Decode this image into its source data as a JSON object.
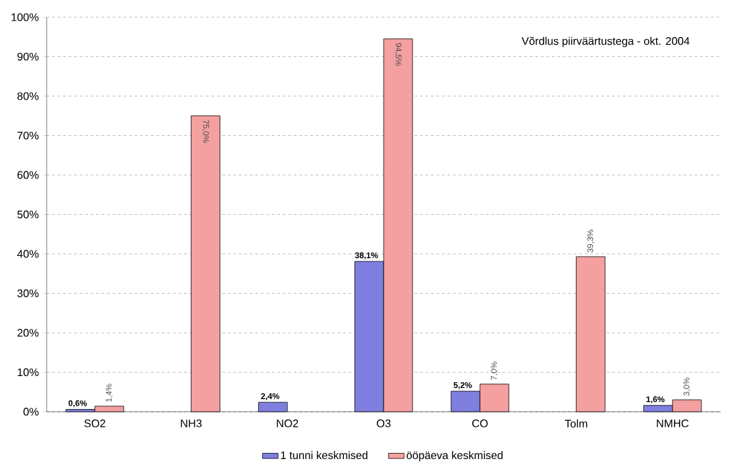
{
  "chart_data": {
    "type": "bar",
    "categories": [
      "SO2",
      "NH3",
      "NO2",
      "O3",
      "CO",
      "Tolm",
      "NMHC"
    ],
    "series": [
      {
        "name": "1 tunni keskmised",
        "color": "#7f7fe0",
        "values": [
          0.6,
          null,
          2.4,
          38.1,
          5.2,
          null,
          1.6
        ],
        "value_labels": [
          "0,6%",
          null,
          "2,4%",
          "38,1%",
          "5,2%",
          null,
          "1,6%"
        ]
      },
      {
        "name": "ööpäeva keskmised",
        "color": "#f4a0a0",
        "values": [
          1.4,
          75.0,
          null,
          94.5,
          7.0,
          39.3,
          3.0
        ],
        "value_labels": [
          "1,4%",
          "75,0%",
          null,
          "94,5%",
          "7,0%",
          "39,3%",
          "3,0%"
        ]
      }
    ],
    "ylim": [
      0,
      100
    ],
    "yticks": [
      {
        "value": 0,
        "label": "0%"
      },
      {
        "value": 10,
        "label": "10%"
      },
      {
        "value": 20,
        "label": "20%"
      },
      {
        "value": 30,
        "label": "30%"
      },
      {
        "value": 40,
        "label": "40%"
      },
      {
        "value": 50,
        "label": "50%"
      },
      {
        "value": 60,
        "label": "60%"
      },
      {
        "value": 70,
        "label": "70%"
      },
      {
        "value": 80,
        "label": "80%"
      },
      {
        "value": 90,
        "label": "90%"
      },
      {
        "value": 100,
        "label": "100%"
      }
    ],
    "grid": "y",
    "legend": "bottom",
    "annotations": [
      "Võrdlus piirväärtustega - okt. 2004"
    ]
  }
}
